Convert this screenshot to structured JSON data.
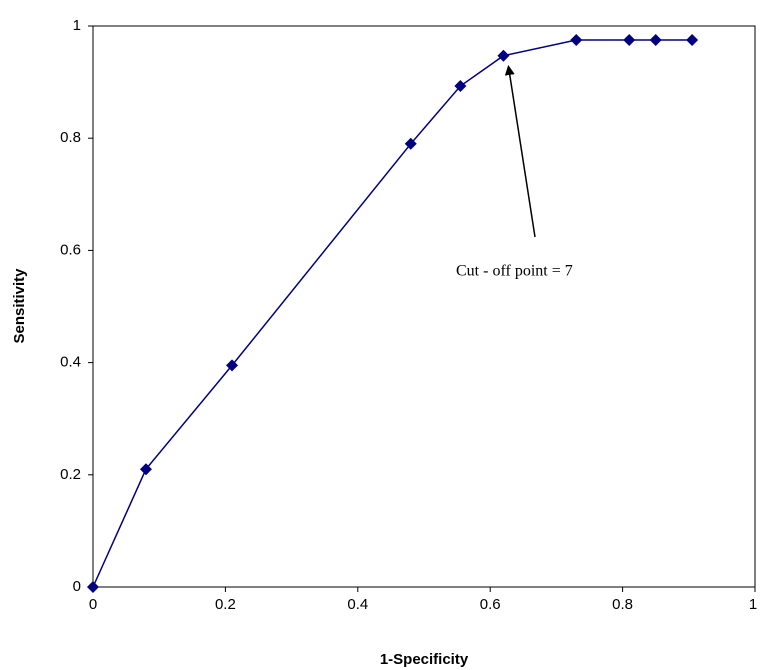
{
  "chart_data": {
    "type": "line",
    "x": [
      0,
      0.08,
      0.21,
      0.48,
      0.555,
      0.62,
      0.73,
      0.81,
      0.85,
      0.905
    ],
    "values": [
      0,
      0.21,
      0.395,
      0.79,
      0.893,
      0.947,
      0.975,
      0.975,
      0.975,
      0.975
    ],
    "color": "#000080",
    "xlim": [
      0,
      1
    ],
    "ylim": [
      0,
      1
    ],
    "xticks": [
      0,
      0.2,
      0.4,
      0.6,
      0.8,
      1
    ],
    "yticks": [
      0,
      0.2,
      0.4,
      0.6,
      0.8,
      1
    ],
    "x_label": "1-Specificity",
    "y_label": "Sensitivity",
    "annotation": "Cut - off  point = 7",
    "grid": false
  }
}
